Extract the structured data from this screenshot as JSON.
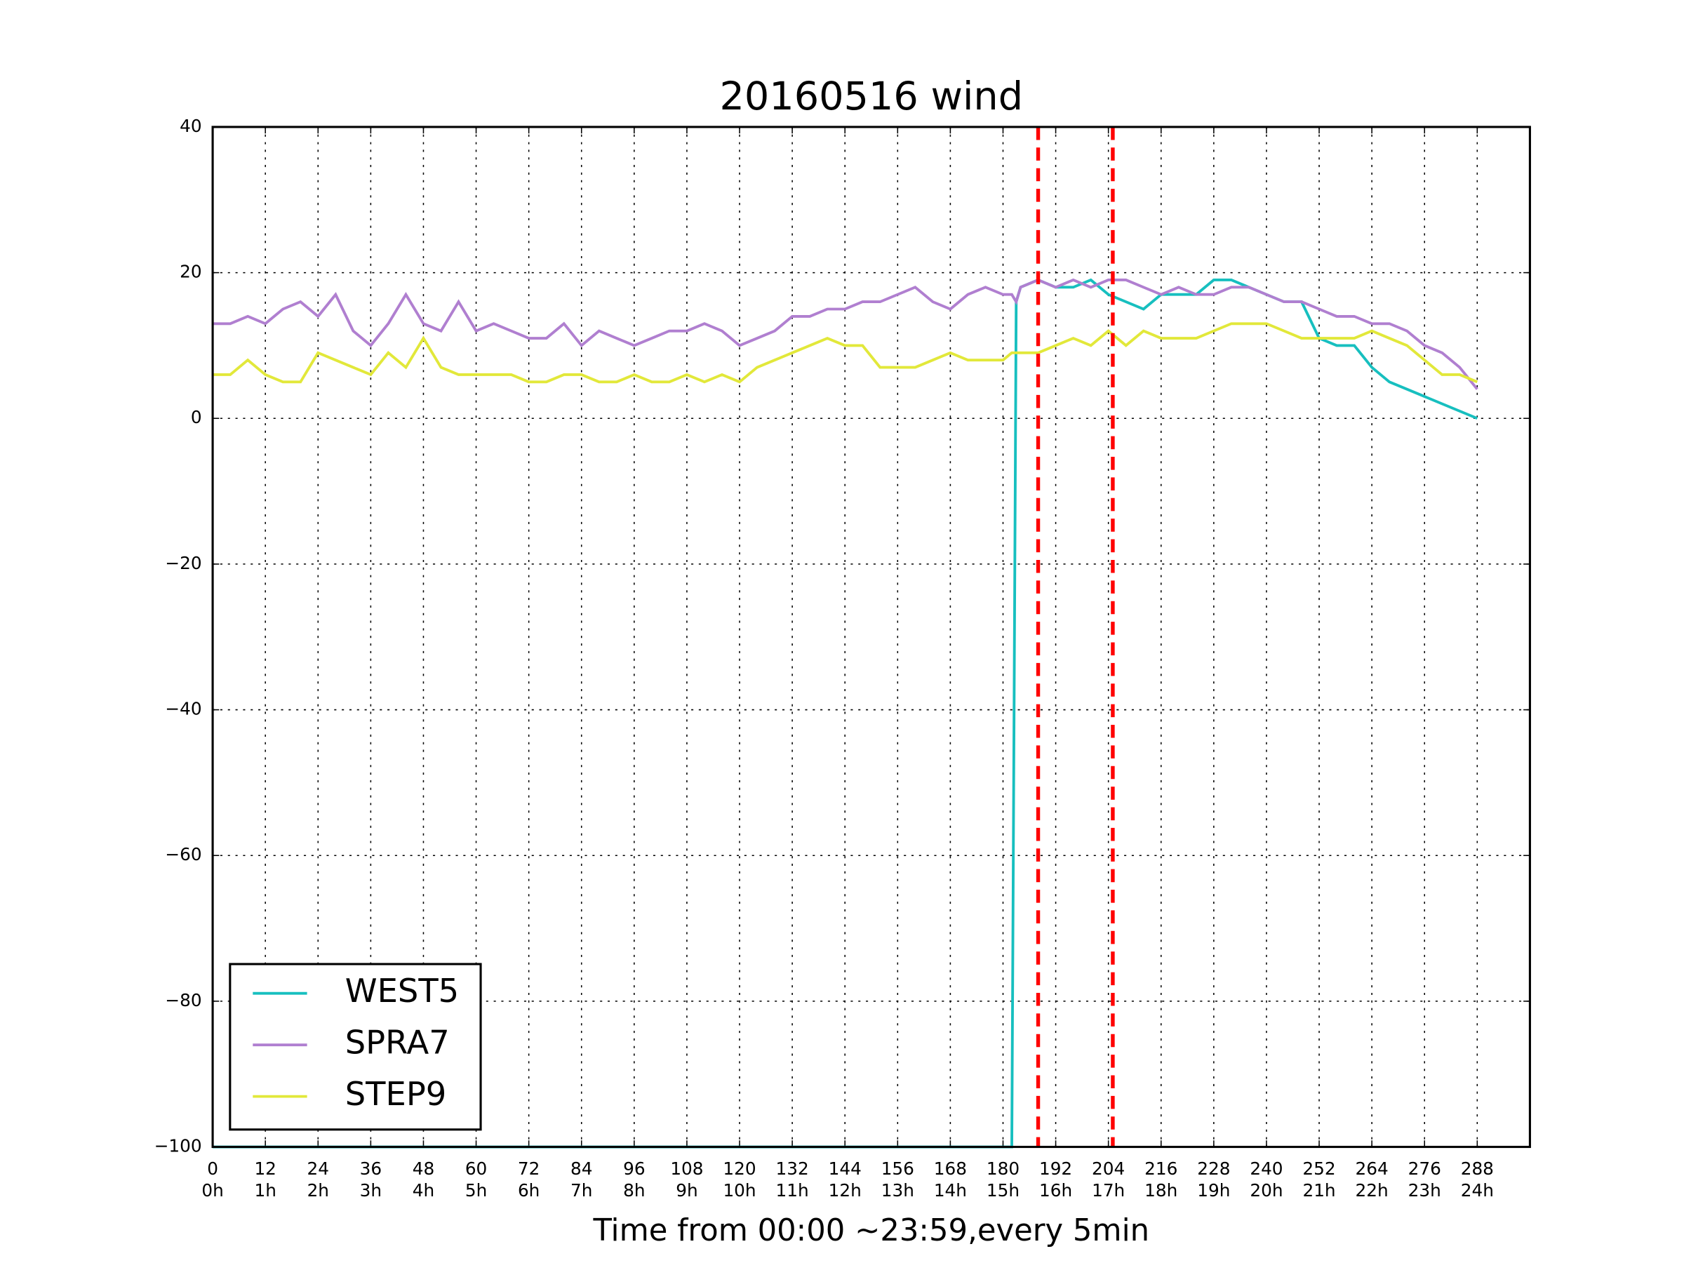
{
  "chart_data": {
    "type": "line",
    "title": "20160516 wind",
    "xlabel": "Time from 00:00 ~23:59,every 5min",
    "x": [
      0,
      4,
      8,
      12,
      16,
      20,
      24,
      28,
      32,
      36,
      40,
      44,
      48,
      52,
      56,
      60,
      64,
      68,
      72,
      76,
      80,
      84,
      88,
      92,
      96,
      100,
      104,
      108,
      112,
      116,
      120,
      124,
      128,
      132,
      136,
      140,
      144,
      148,
      152,
      156,
      160,
      164,
      168,
      172,
      176,
      180,
      182,
      183,
      184,
      188,
      192,
      196,
      200,
      204,
      208,
      212,
      216,
      220,
      224,
      228,
      232,
      236,
      240,
      244,
      248,
      252,
      256,
      260,
      264,
      268,
      272,
      276,
      280,
      284,
      288
    ],
    "series": [
      {
        "name": "WEST5",
        "color": "#17bfbf",
        "values": [
          -100,
          -100,
          -100,
          -100,
          -100,
          -100,
          -100,
          -100,
          -100,
          -100,
          -100,
          -100,
          -100,
          -100,
          -100,
          -100,
          -100,
          -100,
          -100,
          -100,
          -100,
          -100,
          -100,
          -100,
          -100,
          -100,
          -100,
          -100,
          -100,
          -100,
          -100,
          -100,
          -100,
          -100,
          -100,
          -100,
          -100,
          -100,
          -100,
          -100,
          -100,
          -100,
          -100,
          -100,
          -100,
          -100,
          -100,
          16,
          18,
          19,
          18,
          18,
          19,
          17,
          16,
          15,
          17,
          17,
          17,
          19,
          19,
          18,
          17,
          16,
          16,
          11,
          10,
          10,
          7,
          5,
          4,
          3,
          2,
          1,
          0
        ]
      },
      {
        "name": "SPRA7",
        "color": "#b07fd0",
        "values": [
          13,
          13,
          14,
          13,
          15,
          16,
          14,
          17,
          12,
          10,
          13,
          17,
          13,
          12,
          16,
          12,
          13,
          12,
          11,
          11,
          13,
          10,
          12,
          11,
          10,
          11,
          12,
          12,
          13,
          12,
          10,
          11,
          12,
          14,
          14,
          15,
          15,
          16,
          16,
          17,
          18,
          16,
          15,
          17,
          18,
          17,
          17,
          16,
          18,
          19,
          18,
          19,
          18,
          19,
          19,
          18,
          17,
          18,
          17,
          17,
          18,
          18,
          17,
          16,
          16,
          15,
          14,
          14,
          13,
          13,
          12,
          10,
          9,
          7,
          4
        ]
      },
      {
        "name": "STEP9",
        "color": "#e2e83a",
        "values": [
          6,
          6,
          8,
          6,
          5,
          5,
          9,
          8,
          7,
          6,
          9,
          7,
          11,
          7,
          6,
          6,
          6,
          6,
          5,
          5,
          6,
          6,
          5,
          5,
          6,
          5,
          5,
          6,
          5,
          6,
          5,
          7,
          8,
          9,
          10,
          11,
          10,
          10,
          7,
          7,
          7,
          8,
          9,
          8,
          8,
          8,
          9,
          9,
          9,
          9,
          10,
          11,
          10,
          12,
          10,
          12,
          11,
          11,
          11,
          12,
          13,
          13,
          13,
          12,
          11,
          11,
          11,
          11,
          12,
          11,
          10,
          8,
          6,
          6,
          5
        ]
      }
    ],
    "xlim": [
      0,
      300
    ],
    "ylim": [
      -100,
      40
    ],
    "xticks": [
      0,
      12,
      24,
      36,
      48,
      60,
      72,
      84,
      96,
      108,
      120,
      132,
      144,
      156,
      168,
      180,
      192,
      204,
      216,
      228,
      240,
      252,
      264,
      276,
      288
    ],
    "xtick_hours": [
      "0h",
      "1h",
      "2h",
      "3h",
      "4h",
      "5h",
      "6h",
      "7h",
      "8h",
      "9h",
      "10h",
      "11h",
      "12h",
      "13h",
      "14h",
      "15h",
      "16h",
      "17h",
      "18h",
      "19h",
      "20h",
      "21h",
      "22h",
      "23h",
      "24h"
    ],
    "yticks": [
      {
        "value": -100,
        "label": "−100"
      },
      {
        "value": -80,
        "label": "−80"
      },
      {
        "value": -60,
        "label": "−60"
      },
      {
        "value": -40,
        "label": "−40"
      },
      {
        "value": -20,
        "label": "−20"
      },
      0,
      20,
      40
    ],
    "vlines": [
      {
        "x": 188,
        "color": "#ff0000"
      },
      {
        "x": 205,
        "color": "#ff0000"
      }
    ],
    "grid": true,
    "legend": "lower left"
  }
}
